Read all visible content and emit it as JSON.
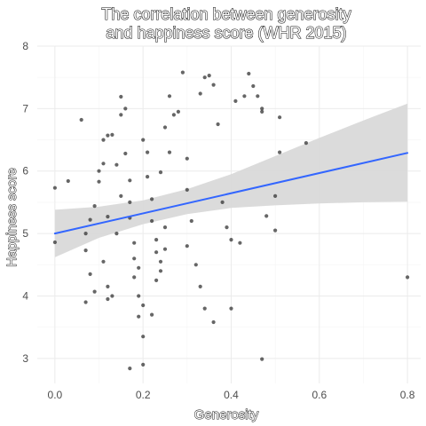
{
  "chart_data": {
    "type": "scatter",
    "title_lines": [
      "The correlation between generosity",
      "and happiness score (WHR 2015)"
    ],
    "xlabel": "Generosity",
    "ylabel": "Happiness score",
    "xlim": [
      -0.04,
      0.83
    ],
    "ylim": [
      2.6,
      8.0
    ],
    "x_ticks": [
      0.0,
      0.2,
      0.4,
      0.6,
      0.8
    ],
    "x_tick_labels": [
      "0.0",
      "0.2",
      "0.4",
      "0.6",
      "0.8"
    ],
    "y_ticks": [
      3,
      4,
      5,
      6,
      7,
      8
    ],
    "y_tick_labels": [
      "3",
      "4",
      "5",
      "6",
      "7",
      "8"
    ],
    "grid": true,
    "point_color": "#333333",
    "line_color": "#3366ff",
    "ribbon_color": "#d9d9d9",
    "fit_line": {
      "x": [
        0.0,
        0.8
      ],
      "y": [
        5.0,
        6.29
      ]
    },
    "confidence_band": {
      "x": [
        0.0,
        0.1,
        0.2,
        0.3,
        0.4,
        0.5,
        0.6,
        0.7,
        0.8
      ],
      "lower": [
        4.62,
        4.93,
        5.15,
        5.31,
        5.41,
        5.45,
        5.48,
        5.5,
        5.51
      ],
      "upper": [
        5.38,
        5.43,
        5.53,
        5.71,
        5.95,
        6.24,
        6.53,
        6.81,
        7.08
      ]
    },
    "points": [
      [
        0.0,
        5.73
      ],
      [
        0.0,
        4.86
      ],
      [
        0.03,
        5.84
      ],
      [
        0.06,
        6.82
      ],
      [
        0.07,
        4.73
      ],
      [
        0.07,
        5.0
      ],
      [
        0.08,
        4.35
      ],
      [
        0.07,
        3.9
      ],
      [
        0.09,
        4.07
      ],
      [
        0.08,
        5.22
      ],
      [
        0.09,
        5.44
      ],
      [
        0.1,
        5.83
      ],
      [
        0.11,
        6.12
      ],
      [
        0.1,
        6.0
      ],
      [
        0.12,
        6.57
      ],
      [
        0.13,
        6.58
      ],
      [
        0.11,
        6.5
      ],
      [
        0.12,
        5.27
      ],
      [
        0.11,
        4.55
      ],
      [
        0.12,
        4.15
      ],
      [
        0.13,
        4.0
      ],
      [
        0.12,
        3.95
      ],
      [
        0.14,
        5.0
      ],
      [
        0.15,
        5.6
      ],
      [
        0.14,
        6.1
      ],
      [
        0.15,
        6.9
      ],
      [
        0.16,
        7.0
      ],
      [
        0.15,
        7.19
      ],
      [
        0.16,
        6.28
      ],
      [
        0.17,
        5.85
      ],
      [
        0.17,
        5.5
      ],
      [
        0.17,
        5.25
      ],
      [
        0.18,
        4.85
      ],
      [
        0.18,
        4.6
      ],
      [
        0.19,
        4.45
      ],
      [
        0.18,
        4.3
      ],
      [
        0.19,
        4.0
      ],
      [
        0.2,
        3.85
      ],
      [
        0.19,
        3.67
      ],
      [
        0.2,
        3.35
      ],
      [
        0.17,
        2.84
      ],
      [
        0.2,
        2.9
      ],
      [
        0.2,
        6.5
      ],
      [
        0.21,
        6.3
      ],
      [
        0.21,
        5.91
      ],
      [
        0.22,
        5.55
      ],
      [
        0.22,
        5.2
      ],
      [
        0.23,
        4.9
      ],
      [
        0.23,
        4.7
      ],
      [
        0.24,
        4.55
      ],
      [
        0.24,
        4.4
      ],
      [
        0.23,
        4.25
      ],
      [
        0.22,
        3.7
      ],
      [
        0.25,
        4.75
      ],
      [
        0.25,
        5.1
      ],
      [
        0.24,
        5.98
      ],
      [
        0.26,
        6.3
      ],
      [
        0.25,
        6.7
      ],
      [
        0.26,
        7.2
      ],
      [
        0.27,
        6.9
      ],
      [
        0.28,
        6.95
      ],
      [
        0.29,
        7.58
      ],
      [
        0.3,
        6.2
      ],
      [
        0.3,
        5.7
      ],
      [
        0.31,
        5.2
      ],
      [
        0.3,
        4.8
      ],
      [
        0.32,
        4.5
      ],
      [
        0.33,
        4.15
      ],
      [
        0.34,
        3.8
      ],
      [
        0.36,
        3.58
      ],
      [
        0.33,
        7.24
      ],
      [
        0.34,
        7.5
      ],
      [
        0.35,
        7.53
      ],
      [
        0.36,
        7.38
      ],
      [
        0.37,
        6.75
      ],
      [
        0.38,
        5.5
      ],
      [
        0.39,
        5.1
      ],
      [
        0.4,
        4.9
      ],
      [
        0.4,
        3.8
      ],
      [
        0.42,
        4.85
      ],
      [
        0.44,
        7.56
      ],
      [
        0.45,
        7.36
      ],
      [
        0.46,
        7.2
      ],
      [
        0.47,
        7.0
      ],
      [
        0.47,
        6.95
      ],
      [
        0.48,
        5.28
      ],
      [
        0.5,
        5.05
      ],
      [
        0.5,
        5.6
      ],
      [
        0.51,
        6.3
      ],
      [
        0.51,
        6.86
      ],
      [
        0.57,
        6.45
      ],
      [
        0.47,
        2.99
      ],
      [
        0.8,
        4.3
      ],
      [
        0.41,
        7.12
      ],
      [
        0.43,
        7.2
      ]
    ]
  }
}
